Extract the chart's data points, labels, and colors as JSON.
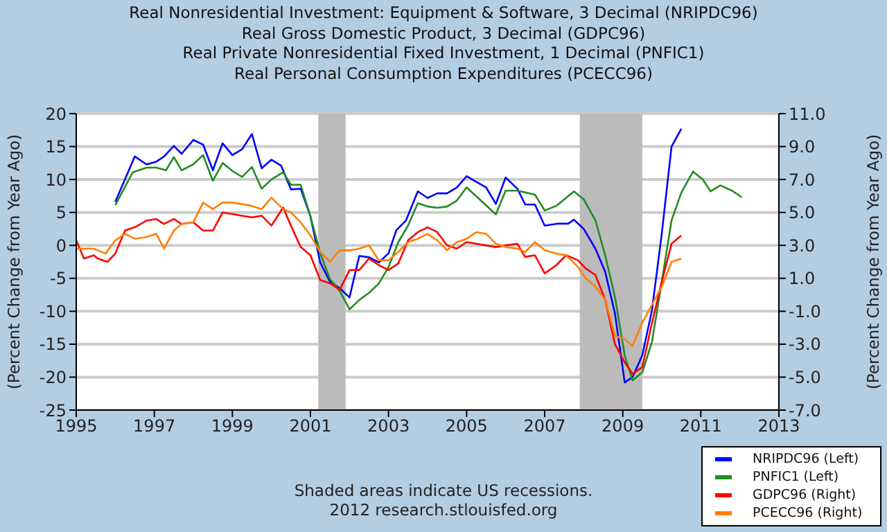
{
  "chart_data": {
    "type": "line",
    "title": "Real Nonresidential Investment: Equipment & Software, 3 Decimal (NRIPDC96)\nReal Gross Domestic Product, 3 Decimal (GDPC96)\nReal Private Nonresidential Fixed Investment, 1 Decimal (PNFIC1)\nReal Personal Consumption Expenditures (PCECC96)",
    "ylabel": "(Percent Change from Year Ago)",
    "y2label": "(Percent Change from Year Ago)",
    "xlim": [
      1995,
      2013
    ],
    "xticks": [
      1995,
      1997,
      1999,
      2001,
      2003,
      2005,
      2007,
      2009,
      2011,
      2013
    ],
    "ylim": [
      -25,
      20
    ],
    "yticks": [
      -25,
      -20,
      -15,
      -10,
      -5,
      0,
      5,
      10,
      15,
      20
    ],
    "y2lim": [
      -7,
      11
    ],
    "y2ticks": [
      {
        "value": -7,
        "label": "-7.0"
      },
      {
        "value": -5,
        "label": "-5.0"
      },
      {
        "value": -3,
        "label": "-3.0"
      },
      {
        "value": -1,
        "label": "-1.0"
      },
      {
        "value": 1,
        "label": "1.0"
      },
      {
        "value": 3,
        "label": "3.0"
      },
      {
        "value": 5,
        "label": "5.0"
      },
      {
        "value": 7,
        "label": "7.0"
      },
      {
        "value": 9,
        "label": "9.0"
      },
      {
        "value": 11,
        "label": "11.0"
      }
    ],
    "grid": "y",
    "legend": "bottom right",
    "marker": "none",
    "line_style": "solid",
    "bands": [
      {
        "axis": "x",
        "from": 2001.2,
        "to": 2001.9,
        "color": "#bbbbbb"
      },
      {
        "axis": "x",
        "from": 2007.9,
        "to": 2009.5,
        "color": "#bbbbbb"
      }
    ],
    "annotations": [
      "Shaded areas indicate US recessions.",
      "2012 research.stlouisfed.org"
    ],
    "series": [
      {
        "name": "NRIPDC96 (Left)",
        "color": "#0000ff",
        "x": [
          1996.0,
          1996.5,
          1996.8,
          1997.05,
          1997.25,
          1997.5,
          1997.7,
          1998.0,
          1998.25,
          1998.5,
          1998.75,
          1999.0,
          1999.25,
          1999.5,
          1999.75,
          2000.0,
          2000.25,
          2000.5,
          2000.75,
          2001.0,
          2001.25,
          2001.5,
          2001.75,
          2002.0,
          2002.25,
          2002.5,
          2002.75,
          2003.0,
          2003.2,
          2003.45,
          2003.75,
          2004.0,
          2004.25,
          2004.5,
          2004.75,
          2005.0,
          2005.5,
          2005.75,
          2006.0,
          2006.3,
          2006.5,
          2006.75,
          2007.0,
          2007.35,
          2007.6,
          2007.75,
          2008.0,
          2008.3,
          2008.55,
          2008.8,
          2009.05,
          2009.25,
          2009.5,
          2009.75,
          2010.0,
          2010.25,
          2010.5
        ],
        "values": [
          6.6,
          13.5,
          12.3,
          12.7,
          13.5,
          15.1,
          13.9,
          16.0,
          15.3,
          11.4,
          15.5,
          13.7,
          14.6,
          16.9,
          11.7,
          13.0,
          12.1,
          8.5,
          8.6,
          4.4,
          -2.6,
          -5.5,
          -6.5,
          -7.9,
          -1.6,
          -1.8,
          -2.6,
          -1.2,
          2.3,
          3.8,
          8.2,
          7.2,
          7.9,
          7.9,
          8.8,
          10.5,
          8.8,
          6.3,
          10.3,
          8.6,
          6.2,
          6.2,
          3.0,
          3.3,
          3.3,
          3.9,
          2.5,
          -0.5,
          -4.0,
          -10.3,
          -20.8,
          -20.0,
          -16.7,
          -9.8,
          1.8,
          15.0,
          17.7
        ]
      },
      {
        "name": "PNFIC1 (Left)",
        "color": "#228b22",
        "x": [
          1996.0,
          1996.45,
          1996.8,
          1997.05,
          1997.3,
          1997.5,
          1997.7,
          1998.0,
          1998.25,
          1998.5,
          1998.75,
          1999.0,
          1999.25,
          1999.5,
          1999.75,
          2000.0,
          2000.3,
          2000.5,
          2000.75,
          2001.0,
          2001.25,
          2001.5,
          2001.75,
          2002.0,
          2002.25,
          2002.5,
          2002.75,
          2003.0,
          2003.25,
          2003.5,
          2003.75,
          2004.0,
          2004.25,
          2004.5,
          2004.75,
          2005.0,
          2005.75,
          2006.0,
          2006.3,
          2006.75,
          2007.0,
          2007.3,
          2007.75,
          2008.0,
          2008.3,
          2008.55,
          2008.8,
          2009.05,
          2009.25,
          2009.5,
          2009.75,
          2010.0,
          2010.25,
          2010.5,
          2010.8,
          2011.05,
          2011.25,
          2011.5,
          2011.8,
          2012.05
        ],
        "values": [
          6.1,
          11.1,
          11.8,
          11.8,
          11.4,
          13.4,
          11.4,
          12.3,
          13.7,
          9.8,
          12.5,
          11.3,
          10.4,
          11.9,
          8.6,
          10.0,
          11.1,
          9.2,
          9.2,
          4.4,
          -1.2,
          -5.1,
          -6.9,
          -9.7,
          -8.3,
          -7.2,
          -5.8,
          -3.3,
          0.5,
          3.0,
          6.4,
          5.9,
          5.7,
          5.9,
          6.8,
          8.8,
          4.7,
          8.3,
          8.3,
          7.7,
          5.3,
          6.0,
          8.2,
          7.0,
          3.8,
          -1.5,
          -7.8,
          -16.7,
          -20.5,
          -19.3,
          -14.6,
          -5.5,
          3.8,
          8.0,
          11.2,
          10.0,
          8.2,
          9.1,
          8.3,
          7.3
        ]
      },
      {
        "name": "GDPC96 (Right)",
        "color": "#ff0000",
        "axis": "y2",
        "x": [
          1995.0,
          1995.2,
          1995.45,
          1995.55,
          1995.8,
          1996.0,
          1996.25,
          1996.5,
          1996.8,
          1997.05,
          1997.25,
          1997.5,
          1997.7,
          1998.0,
          1998.25,
          1998.5,
          1998.75,
          1999.0,
          1999.25,
          1999.5,
          1999.75,
          2000.0,
          2000.3,
          2000.5,
          2000.75,
          2001.0,
          2001.25,
          2001.5,
          2001.75,
          2002.0,
          2002.25,
          2002.5,
          2002.75,
          2003.0,
          2003.25,
          2003.5,
          2003.75,
          2004.0,
          2004.25,
          2004.5,
          2004.75,
          2005.0,
          2005.75,
          2006.0,
          2006.3,
          2006.5,
          2006.75,
          2007.0,
          2007.3,
          2007.55,
          2007.85,
          2008.05,
          2008.3,
          2008.55,
          2008.8,
          2009.05,
          2009.25,
          2009.5,
          2009.75,
          2010.0,
          2010.25,
          2010.5
        ],
        "values": [
          3.3,
          2.2,
          2.4,
          2.2,
          2.0,
          2.5,
          3.9,
          4.1,
          4.5,
          4.6,
          4.3,
          4.6,
          4.3,
          4.4,
          3.9,
          3.9,
          5.0,
          4.9,
          4.8,
          4.7,
          4.8,
          4.2,
          5.3,
          4.2,
          2.9,
          2.4,
          0.9,
          0.7,
          0.3,
          1.5,
          1.5,
          2.2,
          1.8,
          1.5,
          1.9,
          3.3,
          3.8,
          4.1,
          3.8,
          3.0,
          2.8,
          3.2,
          2.9,
          3.0,
          3.1,
          2.3,
          2.4,
          1.3,
          1.8,
          2.4,
          2.1,
          1.6,
          1.2,
          -0.3,
          -3.0,
          -4.1,
          -4.8,
          -4.4,
          -1.7,
          0.8,
          3.1,
          3.6
        ]
      },
      {
        "name": "PCECC96 (Right)",
        "color": "#ff7f00",
        "axis": "y2",
        "x": [
          1995.0,
          1995.2,
          1995.45,
          1995.75,
          1996.0,
          1996.25,
          1996.5,
          1996.8,
          1997.05,
          1997.25,
          1997.5,
          1997.7,
          1998.0,
          1998.25,
          1998.5,
          1998.75,
          1999.0,
          1999.25,
          1999.5,
          1999.75,
          2000.0,
          2000.3,
          2000.5,
          2000.75,
          2001.0,
          2001.25,
          2001.5,
          2001.75,
          2002.0,
          2002.25,
          2002.5,
          2002.75,
          2003.0,
          2003.25,
          2003.5,
          2003.75,
          2004.0,
          2004.25,
          2004.5,
          2004.75,
          2005.0,
          2005.25,
          2005.5,
          2005.75,
          2006.0,
          2006.3,
          2006.5,
          2006.75,
          2007.0,
          2007.3,
          2007.55,
          2007.85,
          2008.05,
          2008.3,
          2008.55,
          2008.8,
          2009.05,
          2009.25,
          2009.5,
          2009.75,
          2010.0,
          2010.25,
          2010.5
        ],
        "values": [
          2.8,
          2.8,
          2.8,
          2.5,
          3.3,
          3.7,
          3.4,
          3.5,
          3.7,
          2.8,
          3.9,
          4.3,
          4.4,
          5.6,
          5.2,
          5.6,
          5.6,
          5.5,
          5.4,
          5.2,
          5.9,
          5.2,
          5.0,
          4.4,
          3.6,
          2.6,
          2.0,
          2.7,
          2.7,
          2.8,
          3.0,
          2.1,
          2.1,
          2.6,
          3.2,
          3.4,
          3.7,
          3.3,
          2.7,
          3.2,
          3.4,
          3.8,
          3.7,
          3.1,
          2.9,
          2.8,
          2.6,
          3.2,
          2.7,
          2.5,
          2.4,
          1.7,
          1.0,
          0.5,
          -0.3,
          -2.5,
          -2.7,
          -3.1,
          -1.7,
          -0.6,
          0.5,
          2.0,
          2.2
        ]
      }
    ]
  }
}
